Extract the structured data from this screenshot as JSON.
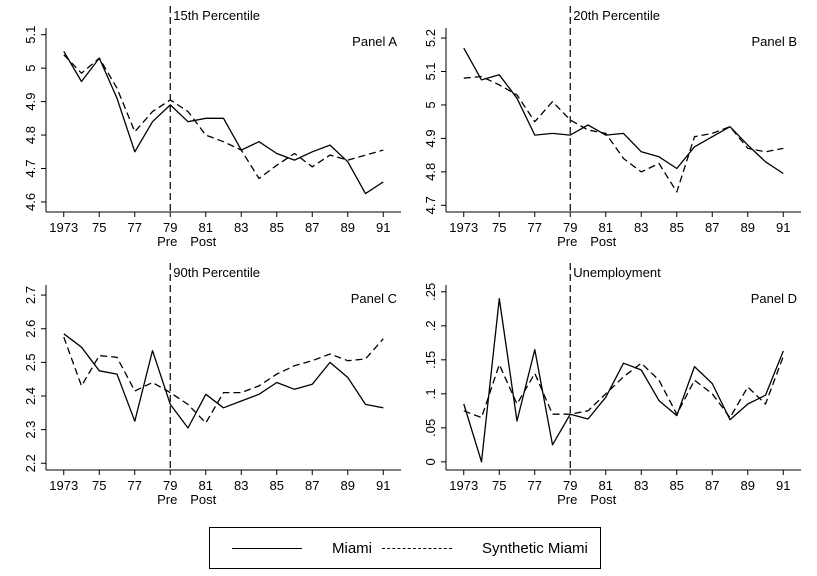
{
  "chart_data": [
    {
      "type": "line",
      "title": "15th Percentile",
      "panel_label": "Panel A",
      "x": [
        1973,
        1974,
        1975,
        1976,
        1977,
        1978,
        1979,
        1980,
        1981,
        1982,
        1983,
        1984,
        1985,
        1986,
        1987,
        1988,
        1989,
        1990,
        1991
      ],
      "xtick_labels": [
        "1973",
        "75",
        "77",
        "79",
        "81",
        "83",
        "85",
        "87",
        "89",
        "91"
      ],
      "xtick_values": [
        1973,
        1975,
        1977,
        1979,
        1981,
        1983,
        1985,
        1987,
        1989,
        1991
      ],
      "xlim": [
        1972,
        1992
      ],
      "ylim": [
        4.57,
        5.12
      ],
      "ytick_labels": [
        "4.6",
        "4.7",
        "4.8",
        "4.9",
        "5",
        "5.1"
      ],
      "ytick_values": [
        4.6,
        4.7,
        4.8,
        4.9,
        5.0,
        5.1
      ],
      "vline": 1979,
      "series": [
        {
          "name": "Miami",
          "style": "solid",
          "values": [
            5.05,
            4.96,
            5.03,
            4.91,
            4.75,
            4.84,
            4.89,
            4.84,
            4.85,
            4.85,
            4.755,
            4.78,
            4.745,
            4.725,
            4.75,
            4.77,
            4.72,
            4.625,
            4.66
          ]
        },
        {
          "name": "Synthetic Miami",
          "style": "dashed",
          "values": [
            5.04,
            4.985,
            5.03,
            4.94,
            4.81,
            4.87,
            4.905,
            4.87,
            4.8,
            4.78,
            4.755,
            4.67,
            4.71,
            4.745,
            4.705,
            4.74,
            4.725,
            4.74,
            4.755
          ]
        }
      ]
    },
    {
      "type": "line",
      "title": "20th Percentile",
      "panel_label": "Panel B",
      "x": [
        1973,
        1974,
        1975,
        1976,
        1977,
        1978,
        1979,
        1980,
        1981,
        1982,
        1983,
        1984,
        1985,
        1986,
        1987,
        1988,
        1989,
        1990,
        1991
      ],
      "xtick_labels": [
        "1973",
        "75",
        "77",
        "79",
        "81",
        "83",
        "85",
        "87",
        "89",
        "91"
      ],
      "xtick_values": [
        1973,
        1975,
        1977,
        1979,
        1981,
        1983,
        1985,
        1987,
        1989,
        1991
      ],
      "xlim": [
        1972,
        1992
      ],
      "ylim": [
        4.68,
        5.23
      ],
      "ytick_labels": [
        "4.7",
        "4.8",
        "4.9",
        "5",
        "5.1",
        "5.2"
      ],
      "ytick_values": [
        4.7,
        4.8,
        4.9,
        5.0,
        5.1,
        5.2
      ],
      "vline": 1979,
      "series": [
        {
          "name": "Miami",
          "style": "solid",
          "values": [
            5.17,
            5.075,
            5.09,
            5.02,
            4.91,
            4.915,
            4.91,
            4.94,
            4.91,
            4.915,
            4.86,
            4.845,
            4.81,
            4.875,
            4.905,
            4.935,
            4.88,
            4.83,
            4.795
          ]
        },
        {
          "name": "Synthetic Miami",
          "style": "dashed",
          "values": [
            5.08,
            5.085,
            5.06,
            5.03,
            4.95,
            5.01,
            4.955,
            4.925,
            4.915,
            4.84,
            4.8,
            4.825,
            4.74,
            4.905,
            4.915,
            4.935,
            4.87,
            4.86,
            4.87
          ]
        }
      ]
    },
    {
      "type": "line",
      "title": "90th Percentile",
      "panel_label": "Panel C",
      "x": [
        1973,
        1974,
        1975,
        1976,
        1977,
        1978,
        1979,
        1980,
        1981,
        1982,
        1983,
        1984,
        1985,
        1986,
        1987,
        1988,
        1989,
        1990,
        1991
      ],
      "xtick_labels": [
        "1973",
        "75",
        "77",
        "79",
        "81",
        "83",
        "85",
        "87",
        "89",
        "91"
      ],
      "xtick_values": [
        1973,
        1975,
        1977,
        1979,
        1981,
        1983,
        1985,
        1987,
        1989,
        1991
      ],
      "xlim": [
        1972,
        1992
      ],
      "ylim": [
        2.18,
        2.73
      ],
      "ytick_labels": [
        "2.2",
        "2.3",
        "2.4",
        "2.5",
        "2.6",
        "2.7"
      ],
      "ytick_values": [
        2.2,
        2.3,
        2.4,
        2.5,
        2.6,
        2.7
      ],
      "vline": 1979,
      "series": [
        {
          "name": "Miami",
          "style": "solid",
          "values": [
            2.585,
            2.545,
            2.475,
            2.465,
            2.325,
            2.535,
            2.375,
            2.305,
            2.405,
            2.365,
            2.385,
            2.405,
            2.44,
            2.42,
            2.435,
            2.5,
            2.455,
            2.375,
            2.365
          ]
        },
        {
          "name": "Synthetic Miami",
          "style": "dashed",
          "values": [
            2.575,
            2.43,
            2.52,
            2.515,
            2.415,
            2.44,
            2.41,
            2.375,
            2.32,
            2.41,
            2.41,
            2.43,
            2.465,
            2.49,
            2.505,
            2.525,
            2.505,
            2.51,
            2.57
          ]
        }
      ]
    },
    {
      "type": "line",
      "title": "Unemployment",
      "panel_label": "Panel D",
      "x": [
        1973,
        1974,
        1975,
        1976,
        1977,
        1978,
        1979,
        1980,
        1981,
        1982,
        1983,
        1984,
        1985,
        1986,
        1987,
        1988,
        1989,
        1990,
        1991
      ],
      "xtick_labels": [
        "1973",
        "75",
        "77",
        "79",
        "81",
        "83",
        "85",
        "87",
        "89",
        "91"
      ],
      "xtick_values": [
        1973,
        1975,
        1977,
        1979,
        1981,
        1983,
        1985,
        1987,
        1989,
        1991
      ],
      "xlim": [
        1972,
        1992
      ],
      "ylim": [
        -0.012,
        0.26
      ],
      "ytick_labels": [
        "0",
        ".05",
        ".1",
        ".15",
        ".2",
        ".25"
      ],
      "ytick_values": [
        0,
        0.05,
        0.1,
        0.15,
        0.2,
        0.25
      ],
      "vline": 1979,
      "series": [
        {
          "name": "Miami",
          "style": "solid",
          "values": [
            0.085,
            0.0,
            0.24,
            0.06,
            0.165,
            0.025,
            0.07,
            0.063,
            0.095,
            0.145,
            0.135,
            0.09,
            0.068,
            0.14,
            0.115,
            0.062,
            0.085,
            0.098,
            0.163
          ]
        },
        {
          "name": "Synthetic Miami",
          "style": "dashed",
          "values": [
            0.075,
            0.065,
            0.143,
            0.085,
            0.13,
            0.07,
            0.07,
            0.075,
            0.1,
            0.125,
            0.145,
            0.12,
            0.07,
            0.12,
            0.1,
            0.065,
            0.11,
            0.085,
            0.155
          ]
        }
      ]
    }
  ],
  "xaxis_phase_labels": {
    "pre": "Pre",
    "post": "Post"
  },
  "legend": [
    {
      "label": "Miami",
      "style": "solid"
    },
    {
      "label": "Synthetic Miami",
      "style": "dashed"
    }
  ]
}
